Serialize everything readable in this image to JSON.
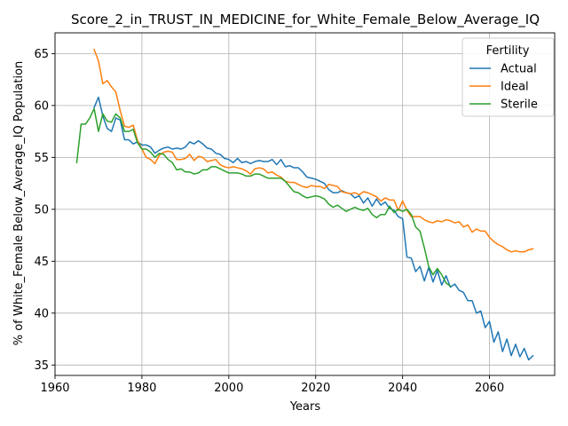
{
  "chart_data": {
    "type": "line",
    "title": "Score_2_in_TRUST_IN_MEDICINE_for_White_Female_Below_Average_IQ",
    "xlabel": "Years",
    "ylabel": "% of White_Female Below_Average_IQ Population",
    "xlim": [
      1960,
      2075
    ],
    "ylim": [
      34,
      67
    ],
    "xticks": [
      1960,
      1980,
      2000,
      2020,
      2040,
      2060
    ],
    "yticks": [
      35,
      40,
      45,
      50,
      55,
      60,
      65
    ],
    "grid": true,
    "legend": {
      "title": "Fertility",
      "placement": "top-right"
    },
    "series": [
      {
        "name": "Actual",
        "color": "#1f77b4",
        "x": [
          1969,
          1970,
          1971,
          1972,
          1973,
          1974,
          1975,
          1976,
          1977,
          1978,
          1979,
          1980,
          1981,
          1982,
          1983,
          1984,
          1985,
          1986,
          1987,
          1988,
          1989,
          1990,
          1991,
          1992,
          1993,
          1994,
          1995,
          1996,
          1997,
          1998,
          1999,
          2000,
          2001,
          2002,
          2003,
          2004,
          2005,
          2006,
          2007,
          2008,
          2009,
          2010,
          2011,
          2012,
          2013,
          2014,
          2015,
          2016,
          2017,
          2018,
          2019,
          2020,
          2021,
          2022,
          2023,
          2024,
          2025,
          2026,
          2027,
          2028,
          2029,
          2030,
          2031,
          2032,
          2033,
          2034,
          2035,
          2036,
          2037,
          2038,
          2039,
          2040,
          2041,
          2042,
          2043,
          2044,
          2045,
          2046,
          2047,
          2048,
          2049,
          2050,
          2051,
          2052,
          2053,
          2054,
          2055,
          2056,
          2057,
          2058,
          2059,
          2060,
          2061,
          2062,
          2063,
          2064,
          2065,
          2066,
          2067,
          2068,
          2069,
          2070
        ],
        "values": [
          59.8,
          60.8,
          59.0,
          57.8,
          57.5,
          58.8,
          58.6,
          56.7,
          56.7,
          56.3,
          56.5,
          56.2,
          56.2,
          56.0,
          55.4,
          55.7,
          55.9,
          56.0,
          55.8,
          55.9,
          55.8,
          56.0,
          56.5,
          56.3,
          56.6,
          56.3,
          55.9,
          55.8,
          55.4,
          55.3,
          54.9,
          54.8,
          54.5,
          54.9,
          54.5,
          54.6,
          54.4,
          54.6,
          54.7,
          54.6,
          54.6,
          54.8,
          54.3,
          54.8,
          54.1,
          54.2,
          54.0,
          54.0,
          53.6,
          53.1,
          53.0,
          52.9,
          52.7,
          52.5,
          51.9,
          51.6,
          51.6,
          51.8,
          51.6,
          51.5,
          51.1,
          51.3,
          50.6,
          51.1,
          50.3,
          51.0,
          50.4,
          50.7,
          50.1,
          49.9,
          49.3,
          49.1,
          45.4,
          45.3,
          44.0,
          44.5,
          43.1,
          44.4,
          43.0,
          44.1,
          42.7,
          43.6,
          42.5,
          42.8,
          42.2,
          42.0,
          41.2,
          41.2,
          40.0,
          40.2,
          38.6,
          39.2,
          37.2,
          38.2,
          36.3,
          37.5,
          35.9,
          37.0,
          35.8,
          36.6,
          35.5,
          35.9
        ]
      },
      {
        "name": "Ideal",
        "color": "#ff7f0e",
        "x": [
          1969,
          1970,
          1971,
          1972,
          1973,
          1974,
          1975,
          1976,
          1977,
          1978,
          1979,
          1980,
          1981,
          1982,
          1983,
          1984,
          1985,
          1986,
          1987,
          1988,
          1989,
          1990,
          1991,
          1992,
          1993,
          1994,
          1995,
          1996,
          1997,
          1998,
          1999,
          2000,
          2001,
          2002,
          2003,
          2004,
          2005,
          2006,
          2007,
          2008,
          2009,
          2010,
          2011,
          2012,
          2013,
          2014,
          2015,
          2016,
          2017,
          2018,
          2019,
          2020,
          2021,
          2022,
          2023,
          2024,
          2025,
          2026,
          2027,
          2028,
          2029,
          2030,
          2031,
          2032,
          2033,
          2034,
          2035,
          2036,
          2037,
          2038,
          2039,
          2040,
          2041,
          2042,
          2043,
          2044,
          2045,
          2046,
          2047,
          2048,
          2049,
          2050,
          2051,
          2052,
          2053,
          2054,
          2055,
          2056,
          2057,
          2058,
          2059,
          2060,
          2061,
          2062,
          2063,
          2064,
          2065,
          2066,
          2067,
          2068,
          2069,
          2070
        ],
        "values": [
          65.4,
          64.3,
          62.1,
          62.4,
          61.8,
          61.3,
          59.5,
          58.0,
          57.9,
          58.1,
          56.6,
          55.8,
          55.0,
          54.8,
          54.4,
          55.2,
          55.5,
          55.6,
          55.5,
          54.8,
          54.8,
          54.9,
          55.3,
          54.7,
          55.1,
          55.0,
          54.6,
          54.7,
          54.8,
          54.3,
          54.1,
          54.0,
          54.1,
          54.0,
          53.9,
          53.7,
          53.4,
          53.9,
          54.0,
          53.9,
          53.5,
          53.6,
          53.3,
          53.1,
          52.7,
          52.6,
          52.6,
          52.4,
          52.2,
          52.1,
          52.3,
          52.2,
          52.2,
          52.0,
          52.4,
          52.3,
          52.2,
          51.7,
          51.6,
          51.5,
          51.6,
          51.4,
          51.7,
          51.6,
          51.4,
          51.2,
          50.8,
          51.1,
          50.9,
          50.9,
          49.9,
          50.8,
          49.9,
          49.3,
          49.3,
          49.3,
          49.0,
          48.8,
          48.7,
          48.9,
          48.8,
          49.0,
          48.9,
          48.7,
          48.8,
          48.3,
          48.5,
          47.8,
          48.1,
          47.9,
          47.9,
          47.3,
          46.9,
          46.6,
          46.4,
          46.1,
          45.9,
          46.0,
          45.9,
          45.9,
          46.1,
          46.2
        ]
      },
      {
        "name": "Sterile",
        "color": "#2ca02c",
        "x": [
          1965,
          1966,
          1967,
          1968,
          1969,
          1970,
          1971,
          1972,
          1973,
          1974,
          1975,
          1976,
          1977,
          1978,
          1979,
          1980,
          1981,
          1982,
          1983,
          1984,
          1985,
          1986,
          1987,
          1988,
          1989,
          1990,
          1991,
          1992,
          1993,
          1994,
          1995,
          1996,
          1997,
          1998,
          1999,
          2000,
          2001,
          2002,
          2003,
          2004,
          2005,
          2006,
          2007,
          2008,
          2009,
          2010,
          2011,
          2012,
          2013,
          2014,
          2015,
          2016,
          2017,
          2018,
          2019,
          2020,
          2021,
          2022,
          2023,
          2024,
          2025,
          2026,
          2027,
          2028,
          2029,
          2030,
          2031,
          2032,
          2033,
          2034,
          2035,
          2036,
          2037,
          2038,
          2039,
          2040,
          2041,
          2042,
          2043,
          2044,
          2045,
          2046,
          2047,
          2048,
          2049,
          2050,
          2051
        ],
        "values": [
          54.5,
          58.2,
          58.2,
          58.8,
          59.7,
          57.5,
          59.2,
          58.5,
          58.4,
          59.2,
          58.8,
          57.5,
          57.5,
          57.7,
          56.4,
          55.8,
          55.8,
          55.5,
          55.0,
          55.4,
          55.3,
          54.8,
          54.5,
          53.8,
          53.9,
          53.6,
          53.6,
          53.4,
          53.5,
          53.8,
          53.8,
          54.1,
          54.1,
          53.9,
          53.7,
          53.5,
          53.5,
          53.5,
          53.4,
          53.2,
          53.2,
          53.4,
          53.4,
          53.2,
          53.0,
          53.0,
          53.0,
          53.0,
          52.7,
          52.2,
          51.7,
          51.6,
          51.3,
          51.1,
          51.2,
          51.3,
          51.2,
          51.0,
          50.5,
          50.2,
          50.4,
          50.1,
          49.8,
          50.0,
          50.2,
          50.0,
          49.9,
          50.1,
          49.5,
          49.2,
          49.5,
          49.5,
          50.3,
          49.7,
          50.0,
          49.8,
          50.0,
          49.5,
          48.3,
          47.9,
          46.3,
          44.5,
          43.7,
          44.3,
          43.7,
          42.9,
          42.6
        ]
      }
    ]
  }
}
